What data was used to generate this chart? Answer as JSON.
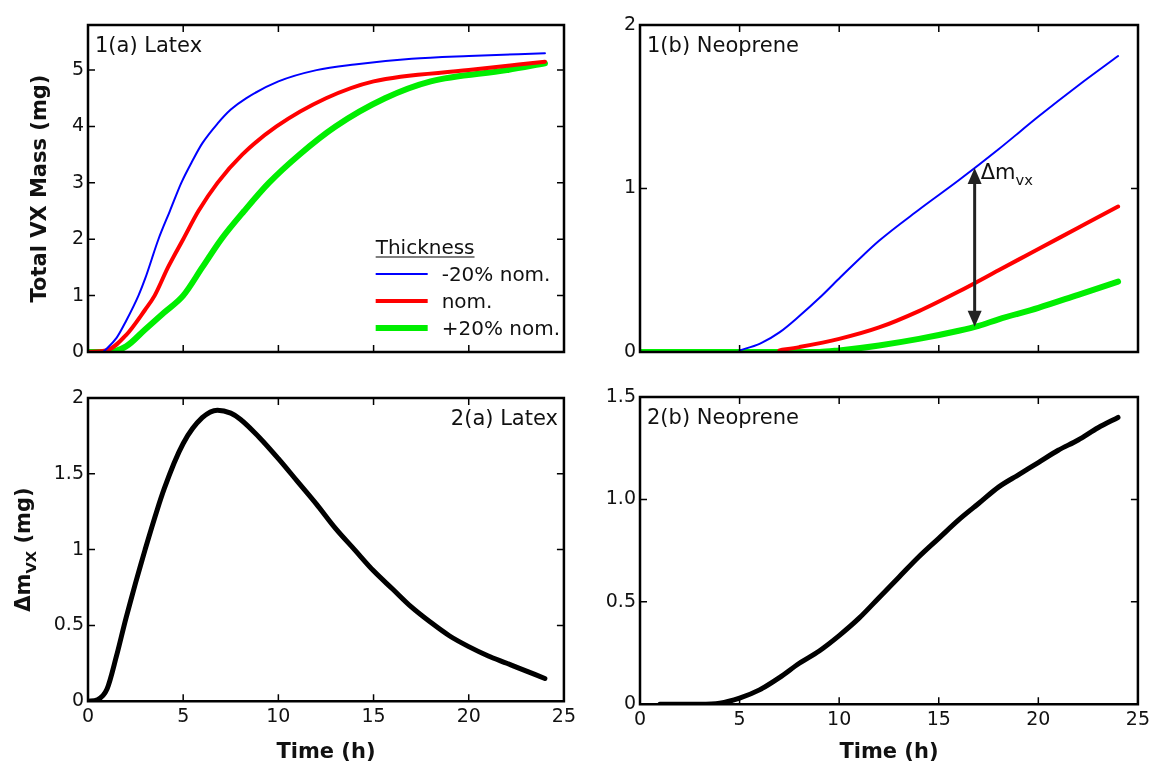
{
  "chart_data": [
    {
      "type": "line",
      "ylabel": "Total VX Mass (mg)",
      "legend": "bottom right",
      "legend_title": "Thickness",
      "xlim": [
        0,
        25
      ],
      "xticks": [
        0,
        5,
        10,
        15,
        20,
        25
      ],
      "ylim": [
        0,
        5.8
      ],
      "yticks": [
        0,
        1,
        2,
        3,
        4,
        5
      ],
      "tick_labels": "y",
      "grid": false,
      "marker": "none",
      "annotations": [
        "1(a) Latex"
      ],
      "series": [
        {
          "name": "-20% nom.",
          "color": "#0000ff",
          "x": [
            0.8,
            1.5,
            2,
            2.65,
            3,
            3.7,
            4.3,
            4.9,
            5.5,
            6,
            6.8,
            7.5,
            8.3,
            10,
            12,
            14,
            17,
            20,
            24
          ],
          "values": [
            0,
            0.25,
            0.55,
            1,
            1.3,
            2,
            2.5,
            3,
            3.4,
            3.7,
            4.05,
            4.3,
            4.5,
            4.8,
            5.0,
            5.1,
            5.2,
            5.25,
            5.3
          ]
        },
        {
          "name": "nom.",
          "color": "#ff0000",
          "x": [
            0,
            1,
            2,
            3,
            3.5,
            4.2,
            5,
            5.8,
            6.8,
            8.1,
            9.9,
            12.5,
            15,
            20,
            24
          ],
          "values": [
            0,
            0.03,
            0.3,
            0.75,
            1,
            1.5,
            2,
            2.5,
            3,
            3.5,
            4,
            4.5,
            4.8,
            5.0,
            5.15
          ]
        },
        {
          "name": "+20% nom.",
          "color": "#00ee00",
          "x": [
            0,
            1,
            2,
            3,
            4,
            5,
            6,
            7,
            8.2,
            9.5,
            11.1,
            13,
            15.6,
            18,
            22,
            24
          ],
          "values": [
            0,
            0,
            0.1,
            0.4,
            0.7,
            1,
            1.5,
            2,
            2.5,
            3,
            3.5,
            4,
            4.5,
            4.8,
            5.0,
            5.12
          ]
        }
      ]
    },
    {
      "type": "line",
      "xlim": [
        0,
        25
      ],
      "xticks": [
        0,
        5,
        10,
        15,
        20,
        25
      ],
      "ylim": [
        0,
        2
      ],
      "yticks": [
        0,
        1,
        2
      ],
      "tick_labels": "y",
      "grid": false,
      "marker": "none",
      "annotations": [
        "1(b) Neoprene",
        "Δm$_{vx}$"
      ],
      "series": [
        {
          "color": "#0000ff",
          "x": [
            5,
            6,
            7,
            8,
            9,
            10,
            12,
            14,
            16,
            18,
            20,
            22,
            24
          ],
          "values": [
            0.01,
            0.05,
            0.12,
            0.22,
            0.33,
            0.45,
            0.68,
            0.87,
            1.05,
            1.24,
            1.44,
            1.63,
            1.81
          ]
        },
        {
          "color": "#ff0000",
          "x": [
            7,
            8,
            10,
            12,
            14,
            16,
            18,
            20,
            22,
            24
          ],
          "values": [
            0.01,
            0.03,
            0.08,
            0.15,
            0.25,
            0.37,
            0.5,
            0.63,
            0.76,
            0.89
          ]
        },
        {
          "color": "#00ee00",
          "x": [
            0,
            9,
            10,
            12,
            14,
            16,
            17,
            18,
            20,
            22,
            24
          ],
          "values": [
            0,
            0,
            0.01,
            0.04,
            0.08,
            0.13,
            0.16,
            0.2,
            0.27,
            0.35,
            0.43
          ]
        }
      ]
    },
    {
      "type": "line",
      "xlabel": "Time (h)",
      "ylabel": "Δm$_{VX}$ (mg)",
      "xlim": [
        0,
        25
      ],
      "xticks": [
        0,
        5,
        10,
        15,
        20,
        25
      ],
      "ylim": [
        0,
        2
      ],
      "yticks": [
        0,
        0.5,
        1,
        1.5,
        2
      ],
      "grid": false,
      "marker": "none",
      "annotations": [
        "2(a) Latex"
      ],
      "series": [
        {
          "color": "#000000",
          "x": [
            0,
            0.5,
            1,
            1.5,
            2,
            3,
            4,
            5,
            6,
            6.8,
            7.5,
            8,
            9,
            10,
            11,
            12,
            13,
            14,
            15,
            16,
            17,
            18,
            19,
            20,
            21,
            22,
            23,
            24
          ],
          "values": [
            0,
            0.01,
            0.08,
            0.3,
            0.55,
            1.0,
            1.4,
            1.7,
            1.87,
            1.92,
            1.9,
            1.86,
            1.74,
            1.6,
            1.45,
            1.3,
            1.14,
            1.0,
            0.86,
            0.74,
            0.62,
            0.52,
            0.43,
            0.36,
            0.3,
            0.25,
            0.2,
            0.15
          ]
        }
      ]
    },
    {
      "type": "line",
      "xlabel": "Time (h)",
      "xlim": [
        0,
        25
      ],
      "xticks": [
        0,
        5,
        10,
        15,
        20,
        25
      ],
      "ylim": [
        0,
        1.5
      ],
      "yticks": [
        0,
        0.5,
        {
          "value": 1,
          "label": "1.0"
        },
        1.5
      ],
      "grid": false,
      "marker": "none",
      "annotations": [
        "2(b) Neoprene"
      ],
      "series": [
        {
          "color": "#000000",
          "x": [
            1,
            3,
            4,
            5,
            6,
            7,
            8,
            9,
            10,
            11,
            12,
            13,
            14,
            15,
            16,
            17,
            18,
            19,
            20,
            21,
            22,
            23,
            24
          ],
          "values": [
            0,
            0,
            0.005,
            0.03,
            0.07,
            0.13,
            0.2,
            0.26,
            0.335,
            0.42,
            0.52,
            0.62,
            0.72,
            0.81,
            0.9,
            0.98,
            1.06,
            1.12,
            1.18,
            1.24,
            1.29,
            1.35,
            1.4
          ]
        }
      ]
    }
  ]
}
